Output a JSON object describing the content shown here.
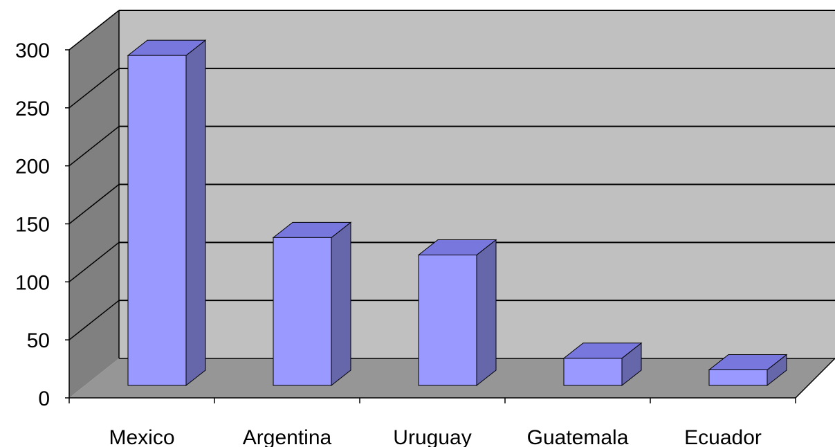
{
  "chart_data": {
    "type": "bar",
    "style": "3d-column",
    "title": "",
    "xlabel": "",
    "ylabel": "",
    "categories": [
      "Mexico",
      "Argentina",
      "Uruguay",
      "Guatemala",
      "Ecuador"
    ],
    "values": [
      288,
      131,
      116,
      27,
      17
    ],
    "ylim": [
      0,
      300
    ],
    "yticks": [
      "0",
      "50",
      "100",
      "150",
      "200",
      "250",
      "300"
    ],
    "grid": true,
    "legend": "none",
    "colors": {
      "bar_front": "#9999ff",
      "bar_side": "#6666aa",
      "bar_top": "#7777dd",
      "back_wall": "#c0c0c0",
      "side_wall": "#808080",
      "floor": "#969696",
      "grid": "#000000"
    }
  }
}
